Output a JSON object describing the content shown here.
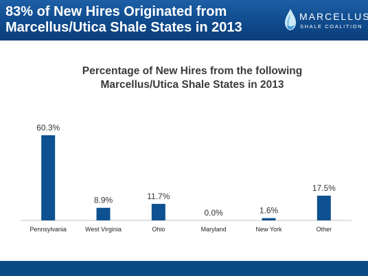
{
  "header": {
    "title_line1": "83% of New Hires Originated from",
    "title_line2": "Marcellus/Utica Shale States in 2013",
    "logo_word": "MARCELLUS",
    "logo_sub": "SHALE COALITION"
  },
  "colors": {
    "header_bg": "#0f4a8c",
    "bar": "#0d5190",
    "footer": "#0c4a86"
  },
  "chart_data": {
    "type": "bar",
    "title_line1": "Percentage of New Hires from the following",
    "title_line2": "Marcellus/Utica Shale States in 2013",
    "categories": [
      "Pennsylvania",
      "West Virginia",
      "Ohio",
      "Maryland",
      "New York",
      "Other"
    ],
    "values": [
      60.3,
      8.9,
      11.7,
      0.0,
      1.6,
      17.5
    ],
    "data_labels": [
      "60.3%",
      "8.9%",
      "11.7%",
      "0.0%",
      "1.6%",
      "17.5%"
    ],
    "ylim": [
      0,
      60.3
    ],
    "grid": false,
    "legend": "none"
  }
}
